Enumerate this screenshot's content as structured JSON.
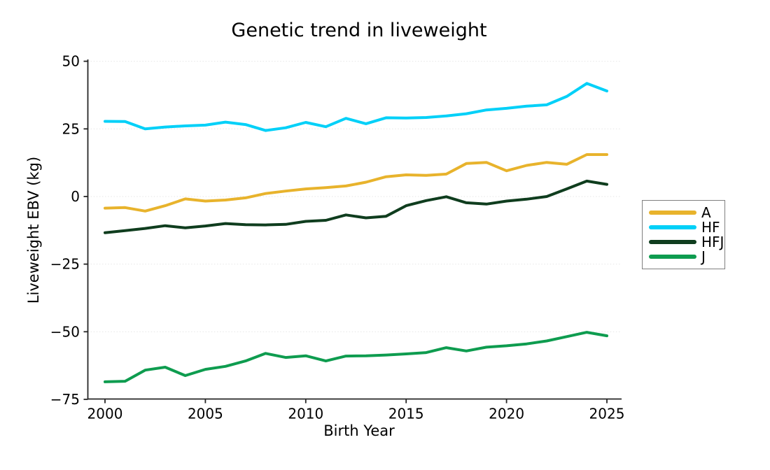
{
  "chart_data": {
    "type": "line",
    "title": "Genetic trend in liveweight",
    "xlabel": "Birth Year",
    "ylabel": "Liveweight EBV (kg)",
    "x_range": [
      2000,
      2025
    ],
    "y_range": [
      -75,
      50
    ],
    "xticks": [
      2000,
      2005,
      2010,
      2015,
      2020,
      2025
    ],
    "yticks": [
      50,
      25,
      0,
      -25,
      -50,
      -75
    ],
    "ytick_labels": [
      "50",
      "25",
      "0",
      "−25",
      "−50",
      "−75"
    ],
    "grid": "horizontal-dotted",
    "legend_position": "right-outside",
    "axis_color": "#262626",
    "grid_color": "#e6e6e6",
    "background_color": "#ffffff",
    "x": [
      2000,
      2001,
      2002,
      2003,
      2004,
      2005,
      2006,
      2007,
      2008,
      2009,
      2010,
      2011,
      2012,
      2013,
      2014,
      2015,
      2016,
      2017,
      2018,
      2019,
      2020,
      2021,
      2022,
      2023,
      2024,
      2025
    ],
    "series": [
      {
        "name": "A",
        "color": "#E8B32C",
        "values": [
          -4.3,
          -4.1,
          -5.4,
          -3.4,
          -0.9,
          -1.7,
          -1.3,
          -0.5,
          1.1,
          2.0,
          2.8,
          3.3,
          3.9,
          5.3,
          7.3,
          8.0,
          7.8,
          8.3,
          12.2,
          12.6,
          9.5,
          11.5,
          12.6,
          11.9,
          15.5,
          15.5
        ]
      },
      {
        "name": "HF",
        "color": "#00D0F8",
        "values": [
          27.8,
          27.7,
          25.0,
          25.7,
          26.1,
          26.4,
          27.5,
          26.6,
          24.4,
          25.4,
          27.4,
          25.8,
          28.9,
          26.9,
          29.1,
          29.0,
          29.2,
          29.8,
          30.6,
          32.0,
          32.6,
          33.4,
          33.9,
          37.0,
          41.8,
          39.0
        ]
      },
      {
        "name": "HFJ",
        "color": "#0F3D1E",
        "values": [
          -13.4,
          -12.6,
          -11.8,
          -10.8,
          -11.6,
          -10.9,
          -10.0,
          -10.4,
          -10.5,
          -10.3,
          -9.2,
          -8.8,
          -6.8,
          -7.9,
          -7.3,
          -3.4,
          -1.5,
          -0.1,
          -2.3,
          -2.8,
          -1.7,
          -1.0,
          0.0,
          2.8,
          5.7,
          4.5
        ]
      },
      {
        "name": "J",
        "color": "#0E9C4F",
        "values": [
          -68.5,
          -68.3,
          -64.2,
          -63.1,
          -66.2,
          -63.9,
          -62.8,
          -60.8,
          -58.0,
          -59.5,
          -58.9,
          -60.8,
          -59.0,
          -58.9,
          -58.6,
          -58.2,
          -57.7,
          -55.9,
          -57.1,
          -55.7,
          -55.2,
          -54.5,
          -53.4,
          -51.8,
          -50.2,
          -51.5
        ]
      }
    ]
  }
}
